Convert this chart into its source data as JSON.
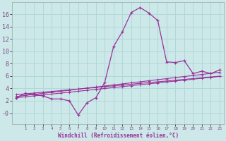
{
  "x": [
    0,
    1,
    2,
    3,
    4,
    5,
    6,
    7,
    8,
    9,
    10,
    11,
    12,
    13,
    14,
    15,
    16,
    17,
    18,
    19,
    20,
    21,
    22,
    23
  ],
  "y_main": [
    2.5,
    3.2,
    3.0,
    2.8,
    2.3,
    2.3,
    2.0,
    -0.3,
    1.7,
    2.5,
    5.0,
    10.8,
    13.2,
    16.3,
    17.1,
    16.2,
    15.0,
    8.3,
    8.2,
    8.5,
    6.4,
    6.8,
    6.4,
    7.0
  ],
  "y_line1": [
    2.5,
    2.65,
    2.8,
    2.95,
    3.1,
    3.25,
    3.4,
    3.55,
    3.7,
    3.85,
    4.0,
    4.15,
    4.3,
    4.45,
    4.6,
    4.75,
    4.9,
    5.05,
    5.2,
    5.35,
    5.5,
    5.65,
    5.8,
    5.95
  ],
  "y_line2": [
    2.7,
    2.87,
    3.04,
    3.21,
    3.38,
    3.55,
    3.72,
    3.89,
    4.06,
    4.23,
    4.4,
    4.57,
    4.74,
    4.91,
    5.08,
    5.25,
    5.42,
    5.59,
    5.76,
    5.93,
    6.1,
    6.27,
    6.44,
    6.61
  ],
  "y_line3": [
    3.0,
    3.13,
    3.26,
    3.39,
    3.52,
    3.65,
    3.78,
    3.91,
    4.04,
    4.17,
    4.3,
    4.43,
    4.56,
    4.69,
    4.82,
    4.95,
    5.08,
    5.21,
    5.34,
    5.47,
    5.6,
    5.73,
    5.86,
    5.99
  ],
  "color": "#993399",
  "bg_color": "#cce8e8",
  "grid_color": "#b0d8d8",
  "xlabel": "Windchill (Refroidissement éolien,°C)",
  "ytick_labels": [
    "16",
    "14",
    "12",
    "10",
    "8",
    "6",
    "4",
    "2",
    "-0"
  ],
  "ytick_vals": [
    16,
    14,
    12,
    10,
    8,
    6,
    4,
    2,
    0
  ],
  "ylim": [
    -1.8,
    18.0
  ],
  "xlim": [
    -0.5,
    23.5
  ],
  "xtick_labels": [
    "1",
    "2",
    "3",
    "4",
    "5",
    "6",
    "7",
    "8",
    "9",
    "1011121314151617181920212223"
  ],
  "xtick_positions": [
    1,
    2,
    3,
    4,
    5,
    6,
    7,
    8,
    9,
    10
  ]
}
